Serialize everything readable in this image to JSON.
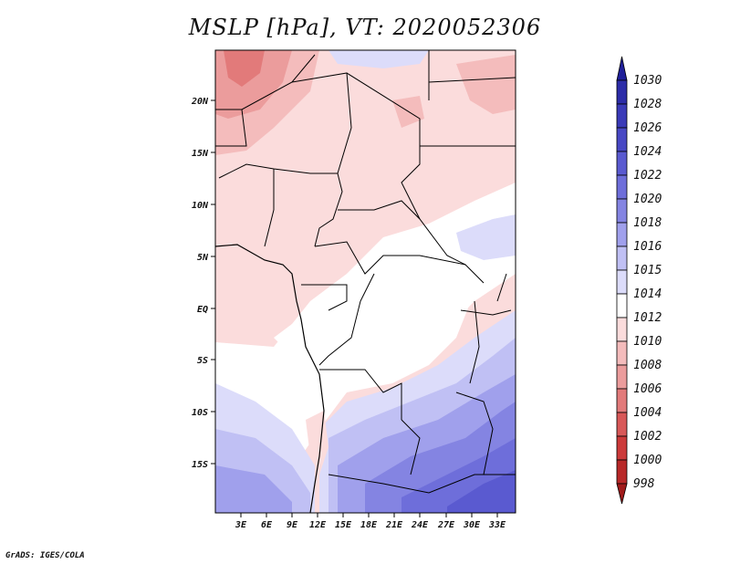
{
  "title": "MSLP [hPa], VT: 2020052306",
  "credit": "GrADS: IGES/COLA",
  "map": {
    "lon_ticks": [
      "3E",
      "6E",
      "9E",
      "12E",
      "15E",
      "18E",
      "21E",
      "24E",
      "27E",
      "30E",
      "33E"
    ],
    "lat_ticks": [
      "20N",
      "15N",
      "10N",
      "5N",
      "EQ",
      "5S",
      "10S",
      "15S"
    ]
  },
  "colorbar": {
    "levels": [
      "1030",
      "1028",
      "1026",
      "1024",
      "1022",
      "1020",
      "1018",
      "1016",
      "1015",
      "1014",
      "1012",
      "1010",
      "1008",
      "1006",
      "1004",
      "1002",
      "1000",
      "998"
    ],
    "colors": [
      "#20209a",
      "#2c2ca8",
      "#3a3ab8",
      "#4848c4",
      "#5a5ad0",
      "#6e6eda",
      "#8484e2",
      "#a0a0ec",
      "#c0c0f4",
      "#dcdcfa",
      "#ffffff",
      "#fbdcdc",
      "#f4bcbc",
      "#eb9c9c",
      "#e27a7a",
      "#d85858",
      "#cc3a3a",
      "#b82828",
      "#a01a1a"
    ]
  }
}
